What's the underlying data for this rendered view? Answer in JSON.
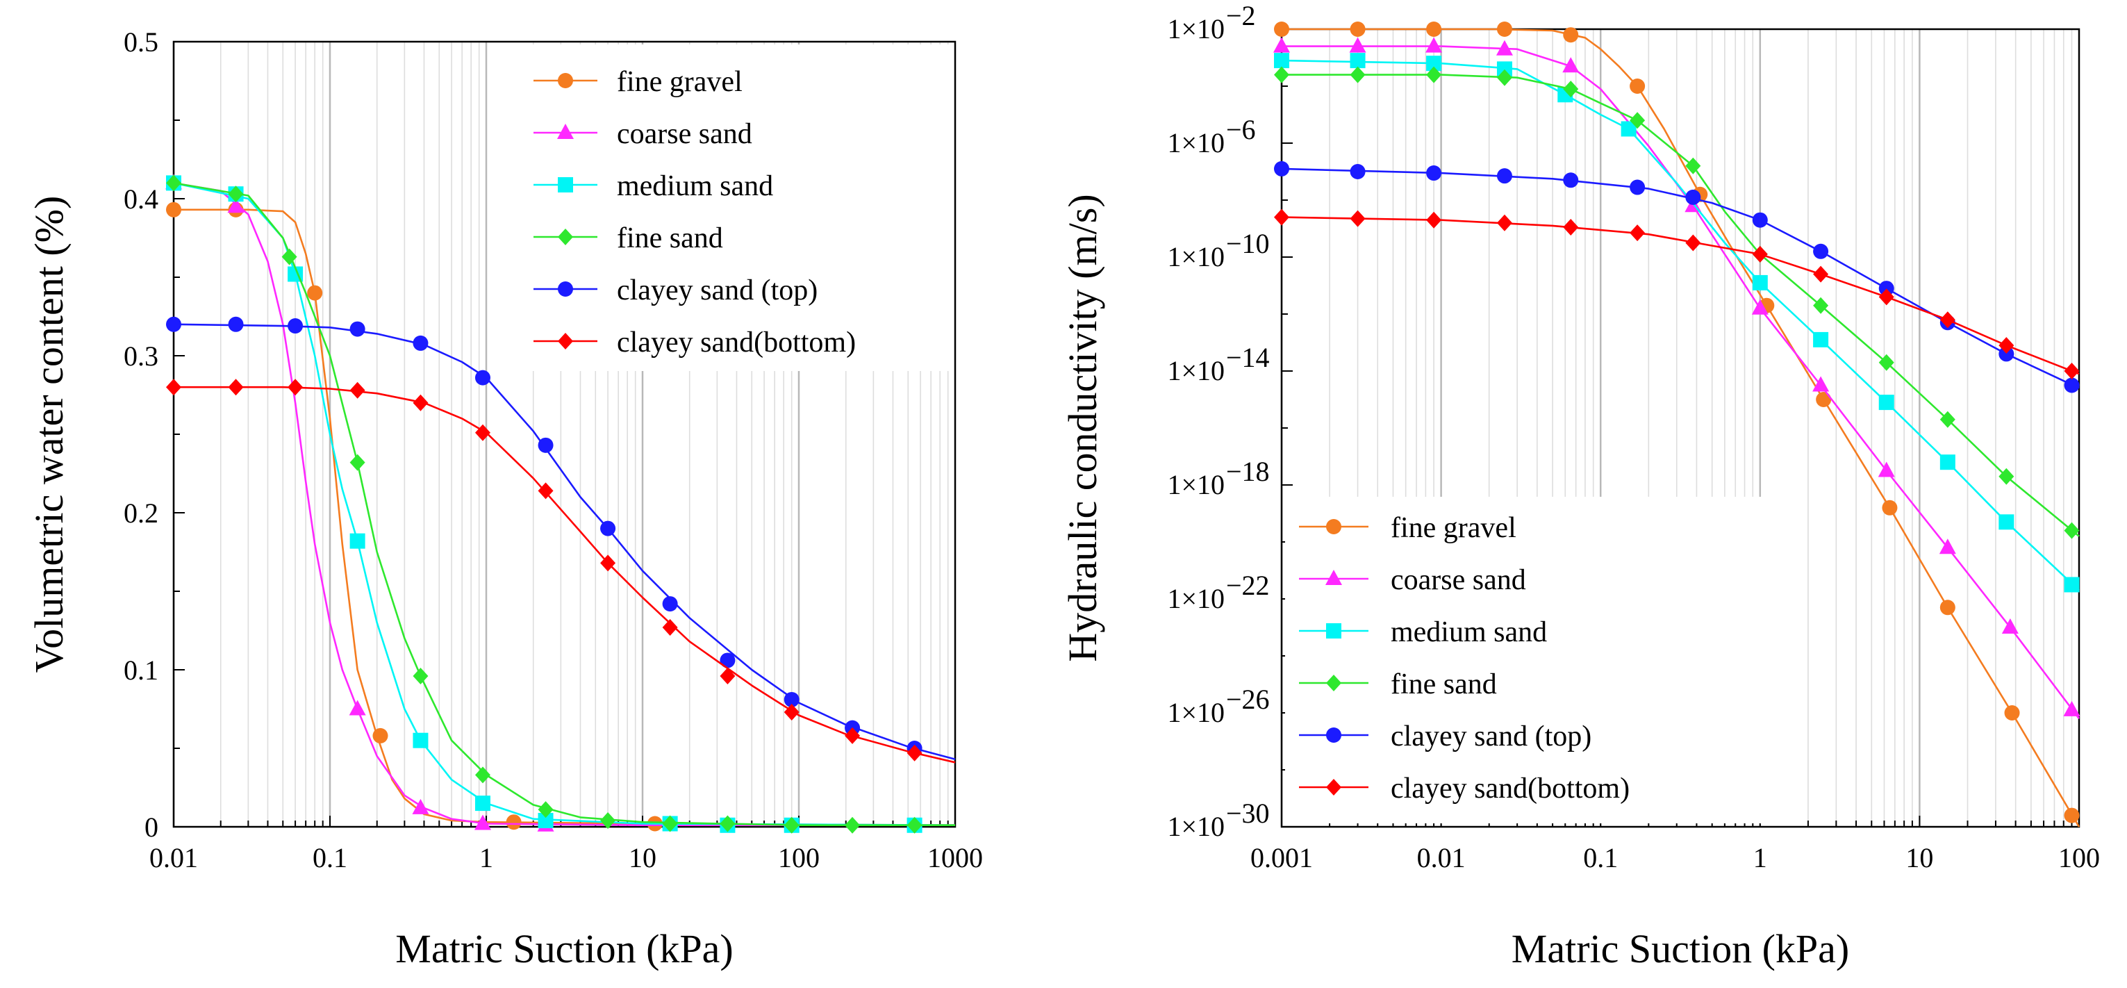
{
  "chart_data": [
    {
      "id": "left",
      "type": "line",
      "xscale": "log",
      "yscale": "linear",
      "xlabel": "Matric Suction (kPa)",
      "ylabel": "Volumetric water content (%)",
      "xlim": [
        0.01,
        1000
      ],
      "ylim": [
        0,
        0.5
      ],
      "xticks": [
        "0.01",
        "0.1",
        "1",
        "10",
        "100",
        "1000"
      ],
      "yticks": [
        "0",
        "0.1",
        "0.2",
        "0.3",
        "0.4",
        "0.5"
      ],
      "legend_position": "top-right",
      "series": [
        {
          "name": "fine gravel",
          "color": "#f47c20",
          "marker": "circle",
          "x": [
            0.01,
            0.025,
            0.08,
            0.21,
            1.5,
            12,
            90,
            550
          ],
          "y": [
            0.393,
            0.393,
            0.34,
            0.058,
            0.003,
            0.002,
            0.001,
            0.001
          ],
          "curve_x": [
            0.01,
            0.03,
            0.05,
            0.06,
            0.07,
            0.08,
            0.1,
            0.12,
            0.15,
            0.2,
            0.25,
            0.3,
            0.4,
            0.6,
            1,
            10,
            1000
          ],
          "curve_y": [
            0.393,
            0.393,
            0.392,
            0.385,
            0.365,
            0.34,
            0.26,
            0.18,
            0.1,
            0.058,
            0.03,
            0.018,
            0.008,
            0.004,
            0.003,
            0.002,
            0.001
          ]
        },
        {
          "name": "coarse sand",
          "color": "#ff28ff",
          "marker": "triangle",
          "x": [
            0.01,
            0.025,
            0.15,
            0.38,
            0.95,
            2.4
          ],
          "y": [
            0.41,
            0.395,
            0.075,
            0.012,
            0.002,
            0.001
          ],
          "curve_x": [
            0.01,
            0.02,
            0.03,
            0.04,
            0.05,
            0.06,
            0.07,
            0.08,
            0.1,
            0.12,
            0.15,
            0.2,
            0.3,
            0.4,
            0.6,
            1,
            10,
            1000
          ],
          "curve_y": [
            0.41,
            0.405,
            0.39,
            0.36,
            0.32,
            0.27,
            0.22,
            0.18,
            0.13,
            0.1,
            0.075,
            0.045,
            0.02,
            0.012,
            0.005,
            0.002,
            0.001,
            0.001
          ]
        },
        {
          "name": "medium sand",
          "color": "#00f5f5",
          "marker": "square",
          "x": [
            0.01,
            0.025,
            0.06,
            0.15,
            0.38,
            0.95,
            2.4,
            15,
            35,
            90,
            550
          ],
          "y": [
            0.41,
            0.403,
            0.352,
            0.182,
            0.055,
            0.015,
            0.004,
            0.002,
            0.001,
            0.001,
            0.001
          ],
          "curve_x": [
            0.01,
            0.03,
            0.05,
            0.06,
            0.08,
            0.1,
            0.12,
            0.15,
            0.2,
            0.3,
            0.38,
            0.6,
            1,
            2,
            10,
            1000
          ],
          "curve_y": [
            0.41,
            0.4,
            0.375,
            0.352,
            0.3,
            0.25,
            0.215,
            0.182,
            0.13,
            0.075,
            0.055,
            0.03,
            0.015,
            0.005,
            0.002,
            0.001
          ]
        },
        {
          "name": "fine sand",
          "color": "#2ee82e",
          "marker": "diamond",
          "x": [
            0.01,
            0.025,
            0.055,
            0.15,
            0.38,
            0.95,
            2.4,
            6,
            15,
            35,
            90,
            220,
            550
          ],
          "y": [
            0.41,
            0.403,
            0.363,
            0.232,
            0.096,
            0.033,
            0.011,
            0.004,
            0.002,
            0.002,
            0.001,
            0.001,
            0.001
          ],
          "curve_x": [
            0.01,
            0.03,
            0.05,
            0.07,
            0.1,
            0.15,
            0.2,
            0.3,
            0.38,
            0.6,
            1,
            2,
            4,
            10,
            100,
            1000
          ],
          "curve_y": [
            0.41,
            0.402,
            0.375,
            0.34,
            0.3,
            0.232,
            0.175,
            0.12,
            0.096,
            0.055,
            0.033,
            0.014,
            0.006,
            0.003,
            0.001,
            0.001
          ]
        },
        {
          "name": "clayey sand (top)",
          "color": "#1b1bff",
          "marker": "circle",
          "x": [
            0.01,
            0.025,
            0.06,
            0.15,
            0.38,
            0.95,
            2.4,
            6,
            15,
            35,
            90,
            220,
            550
          ],
          "y": [
            0.32,
            0.32,
            0.319,
            0.317,
            0.308,
            0.286,
            0.243,
            0.19,
            0.142,
            0.106,
            0.081,
            0.063,
            0.05
          ],
          "curve_x": [
            0.01,
            0.05,
            0.1,
            0.2,
            0.4,
            0.7,
            1,
            2,
            4,
            6,
            10,
            20,
            50,
            100,
            200,
            500,
            1000
          ],
          "curve_y": [
            0.32,
            0.319,
            0.318,
            0.314,
            0.307,
            0.296,
            0.286,
            0.252,
            0.21,
            0.19,
            0.163,
            0.133,
            0.1,
            0.079,
            0.065,
            0.051,
            0.043
          ]
        },
        {
          "name": "clayey sand(bottom)",
          "color": "#ff0000",
          "marker": "diamond",
          "x": [
            0.01,
            0.025,
            0.06,
            0.15,
            0.38,
            0.95,
            2.4,
            6,
            15,
            35,
            90,
            220,
            550
          ],
          "y": [
            0.28,
            0.28,
            0.28,
            0.278,
            0.27,
            0.251,
            0.214,
            0.168,
            0.127,
            0.096,
            0.073,
            0.058,
            0.047
          ],
          "curve_x": [
            0.01,
            0.05,
            0.1,
            0.2,
            0.4,
            0.7,
            1,
            2,
            4,
            6,
            10,
            20,
            50,
            100,
            200,
            500,
            1000
          ],
          "curve_y": [
            0.28,
            0.28,
            0.279,
            0.276,
            0.27,
            0.26,
            0.251,
            0.222,
            0.188,
            0.168,
            0.146,
            0.118,
            0.09,
            0.071,
            0.059,
            0.048,
            0.041
          ]
        }
      ]
    },
    {
      "id": "right",
      "type": "line",
      "xscale": "log",
      "yscale": "log",
      "xlabel": "Matric Suction (kPa)",
      "ylabel": "Hydraulic conductivity (m/s)",
      "xlim": [
        0.001,
        100
      ],
      "ylim_exponent": [
        -30,
        -2
      ],
      "xticks": [
        "0.001",
        "0.01",
        "0.1",
        "1",
        "10",
        "100"
      ],
      "yticks": [
        {
          "base": "1×10",
          "exp": "−2"
        },
        {
          "base": "1×10",
          "exp": "−6"
        },
        {
          "base": "1×10",
          "exp": "−10"
        },
        {
          "base": "1×10",
          "exp": "−14"
        },
        {
          "base": "1×10",
          "exp": "−18"
        },
        {
          "base": "1×10",
          "exp": "−22"
        },
        {
          "base": "1×10",
          "exp": "−26"
        },
        {
          "base": "1×10",
          "exp": "−30"
        }
      ],
      "legend_position": "bottom-left",
      "series": [
        {
          "name": "fine gravel",
          "color": "#f47c20",
          "marker": "circle",
          "x": [
            0.001,
            0.003,
            0.009,
            0.025,
            0.065,
            0.17,
            0.42,
            1.1,
            2.5,
            6.5,
            15,
            38,
            90
          ],
          "log10y": [
            -2,
            -2,
            -2,
            -2,
            -2.2,
            -4,
            -7.8,
            -11.7,
            -15,
            -18.8,
            -22.3,
            -26,
            -29.6
          ],
          "curve_x": [
            0.001,
            0.02,
            0.05,
            0.08,
            0.1,
            0.13,
            0.17,
            0.25,
            0.42,
            0.7,
            1.1,
            2.5,
            6.5,
            15,
            38,
            100
          ],
          "curve_log10y": [
            -2,
            -2,
            -2.05,
            -2.3,
            -2.7,
            -3.3,
            -4,
            -5.5,
            -7.8,
            -9.9,
            -11.7,
            -15,
            -18.8,
            -22.3,
            -26,
            -30
          ]
        },
        {
          "name": "coarse sand",
          "color": "#ff28ff",
          "marker": "triangle",
          "x": [
            0.001,
            0.003,
            0.009,
            0.025,
            0.065,
            0.38,
            1.0,
            2.4,
            6.2,
            15,
            37,
            90
          ],
          "log10y": [
            -2.6,
            -2.6,
            -2.6,
            -2.7,
            -3.3,
            -8.2,
            -11.8,
            -14.5,
            -17.5,
            -20.2,
            -23,
            -25.9
          ],
          "curve_x": [
            0.001,
            0.01,
            0.03,
            0.065,
            0.1,
            0.2,
            0.38,
            0.6,
            1.0,
            2.4,
            6.2,
            15,
            37,
            100
          ],
          "curve_log10y": [
            -2.6,
            -2.6,
            -2.7,
            -3.3,
            -4.1,
            -6.1,
            -8.2,
            -9.9,
            -11.8,
            -14.5,
            -17.5,
            -20.2,
            -23,
            -26.2
          ]
        },
        {
          "name": "medium sand",
          "color": "#00f5f5",
          "marker": "square",
          "x": [
            0.001,
            0.003,
            0.009,
            0.025,
            0.06,
            0.15,
            1.0,
            2.4,
            6.2,
            15,
            35,
            90
          ],
          "log10y": [
            -3.1,
            -3.1,
            -3.2,
            -3.4,
            -4.3,
            -5.5,
            -10.9,
            -12.9,
            -15.1,
            -17.2,
            -19.3,
            -21.5
          ],
          "curve_x": [
            0.001,
            0.01,
            0.03,
            0.06,
            0.1,
            0.15,
            0.3,
            0.6,
            1.0,
            2.4,
            6.2,
            15,
            35,
            100
          ],
          "curve_log10y": [
            -3.1,
            -3.2,
            -3.4,
            -4.3,
            -5,
            -5.5,
            -7.4,
            -9.5,
            -10.9,
            -12.9,
            -15.1,
            -17.2,
            -19.3,
            -21.7
          ]
        },
        {
          "name": "fine sand",
          "color": "#2ee82e",
          "marker": "diamond",
          "x": [
            0.001,
            0.003,
            0.009,
            0.025,
            0.065,
            0.17,
            0.38,
            1.0,
            2.4,
            6.2,
            15,
            35,
            90
          ],
          "log10y": [
            -3.6,
            -3.6,
            -3.6,
            -3.7,
            -4.1,
            -5.2,
            -6.8,
            -9.9,
            -11.7,
            -13.7,
            -15.7,
            -17.7,
            -19.6
          ],
          "curve_x": [
            0.001,
            0.01,
            0.03,
            0.065,
            0.1,
            0.17,
            0.38,
            0.6,
            1.0,
            2.4,
            6.2,
            15,
            35,
            100
          ],
          "curve_log10y": [
            -3.6,
            -3.6,
            -3.7,
            -4.1,
            -4.6,
            -5.2,
            -6.8,
            -8.4,
            -9.9,
            -11.7,
            -13.7,
            -15.7,
            -17.7,
            -19.8
          ]
        },
        {
          "name": "clayey sand (top)",
          "color": "#1b1bff",
          "marker": "circle",
          "x": [
            0.001,
            0.003,
            0.009,
            0.025,
            0.065,
            0.17,
            0.38,
            1.0,
            2.4,
            6.2,
            15,
            35,
            90
          ],
          "log10y": [
            -6.9,
            -7.0,
            -7.05,
            -7.15,
            -7.3,
            -7.55,
            -7.9,
            -8.7,
            -9.8,
            -11.1,
            -12.3,
            -13.4,
            -14.5
          ],
          "curve_x": [
            0.001,
            0.01,
            0.05,
            0.2,
            0.5,
            1.0,
            2.4,
            6.2,
            15,
            35,
            100
          ],
          "curve_log10y": [
            -6.9,
            -7.05,
            -7.25,
            -7.6,
            -8.1,
            -8.7,
            -9.8,
            -11.1,
            -12.3,
            -13.4,
            -14.6
          ]
        },
        {
          "name": "clayey sand(bottom)",
          "color": "#ff0000",
          "marker": "diamond",
          "x": [
            0.001,
            0.003,
            0.009,
            0.025,
            0.065,
            0.17,
            0.38,
            1.0,
            2.4,
            6.2,
            15,
            35,
            90
          ],
          "log10y": [
            -8.6,
            -8.65,
            -8.7,
            -8.8,
            -8.95,
            -9.15,
            -9.5,
            -9.9,
            -10.6,
            -11.4,
            -12.2,
            -13.1,
            -14
          ],
          "curve_x": [
            0.001,
            0.01,
            0.05,
            0.2,
            0.5,
            1.0,
            2.4,
            6.2,
            15,
            35,
            100
          ],
          "curve_log10y": [
            -8.6,
            -8.7,
            -8.9,
            -9.2,
            -9.6,
            -9.9,
            -10.6,
            -11.4,
            -12.2,
            -13.1,
            -14.1
          ]
        }
      ]
    }
  ]
}
